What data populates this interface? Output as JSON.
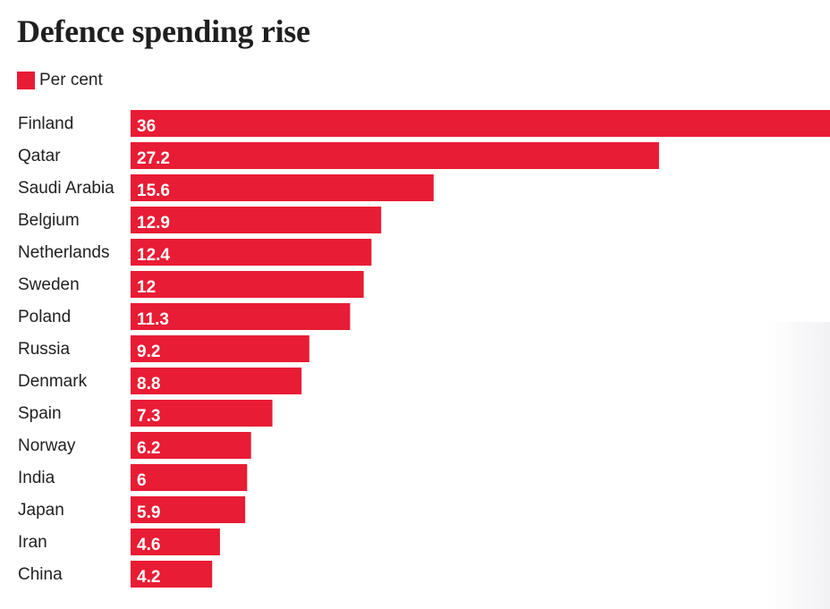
{
  "header": {
    "title": "Defence spending rise"
  },
  "legend": {
    "label": "Per cent"
  },
  "colors": {
    "bar": "#e81c34",
    "bar_label": "#ffffff",
    "category_text": "#222222"
  },
  "chart_data": {
    "type": "bar",
    "orientation": "horizontal",
    "title": "Defence spending rise",
    "xlabel": "",
    "ylabel": "",
    "legend": [
      "Per cent"
    ],
    "grid": false,
    "categories": [
      "Finland",
      "Qatar",
      "Saudi Arabia",
      "Belgium",
      "Netherlands",
      "Sweden",
      "Poland",
      "Russia",
      "Denmark",
      "Spain",
      "Norway",
      "India",
      "Japan",
      "Iran",
      "China"
    ],
    "values": [
      36,
      27.2,
      15.6,
      12.9,
      12.4,
      12,
      11.3,
      9.2,
      8.8,
      7.3,
      6.2,
      6,
      5.9,
      4.6,
      4.2
    ],
    "value_labels": [
      "36",
      "27.2",
      "15.6",
      "12.9",
      "12.4",
      "12",
      "11.3",
      "9.2",
      "8.8",
      "7.3",
      "6.2",
      "6",
      "5.9",
      "4.6",
      "4.2"
    ],
    "xlim": [
      0,
      36
    ]
  }
}
